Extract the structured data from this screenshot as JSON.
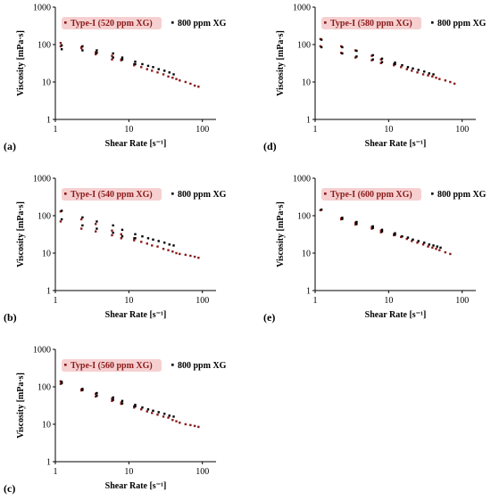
{
  "colors": {
    "type1": "#8b1a1a",
    "xg800": "#000000",
    "legend_highlight": "#f6d0d0"
  },
  "chart_data": [
    {
      "type": "scatter",
      "panel_label": "(a)",
      "xlabel": "Shear Rate [s⁻¹]",
      "ylabel": "Viscosity [mPa·s]",
      "xscale": "log",
      "yscale": "log",
      "xlim": [
        1,
        100
      ],
      "ylim": [
        1,
        1000
      ],
      "x_ticks": [
        "1",
        "10",
        "100"
      ],
      "y_ticks": [
        "1",
        "10",
        "100",
        "1000"
      ],
      "legend_position": "top",
      "series": [
        {
          "name": "Type-I (520 ppm XG)",
          "x": [
            1.2,
            1.2,
            2.3,
            2.3,
            3.6,
            3.6,
            6,
            6,
            8,
            8,
            12,
            12,
            15,
            18,
            21,
            25,
            30,
            35,
            40,
            45,
            50,
            60,
            70,
            80,
            90
          ],
          "y": [
            90,
            110,
            80,
            85,
            62,
            55,
            50,
            40,
            40,
            38,
            30,
            28,
            25,
            22,
            20,
            18,
            16,
            14,
            13,
            12,
            11,
            10,
            9,
            8,
            7.5
          ]
        },
        {
          "name": "800 ppm XG",
          "x": [
            1.2,
            1.2,
            2.3,
            2.3,
            3.6,
            3.6,
            6,
            6,
            8,
            8,
            12,
            12,
            15,
            18,
            21,
            25,
            30,
            35,
            40
          ],
          "y": [
            95,
            75,
            90,
            70,
            70,
            60,
            58,
            45,
            45,
            40,
            35,
            30,
            30,
            27,
            25,
            22,
            20,
            18,
            16
          ]
        }
      ]
    },
    {
      "type": "scatter",
      "panel_label": "(b)",
      "xlabel": "Shear Rate [s⁻¹]",
      "ylabel": "Viscosity [mPa·s]",
      "xscale": "log",
      "yscale": "log",
      "xlim": [
        1,
        100
      ],
      "ylim": [
        1,
        1000
      ],
      "x_ticks": [
        "1",
        "10",
        "100"
      ],
      "y_ticks": [
        "1",
        "10",
        "100",
        "1000"
      ],
      "legend_position": "top",
      "series": [
        {
          "name": "Type-I (540 ppm XG)",
          "x": [
            1.2,
            1.2,
            2.3,
            2.3,
            3.6,
            3.6,
            6,
            6,
            8,
            8,
            12,
            12,
            15,
            18,
            21,
            25,
            30,
            35,
            40,
            45,
            50,
            60,
            70,
            80,
            90
          ],
          "y": [
            130,
            70,
            80,
            45,
            60,
            38,
            40,
            30,
            32,
            25,
            25,
            22,
            20,
            18,
            16,
            15,
            13,
            12,
            11,
            10,
            9.5,
            9,
            8.5,
            8,
            7.5
          ]
        },
        {
          "name": "800 ppm XG",
          "x": [
            1.2,
            1.2,
            2.3,
            2.3,
            3.6,
            3.6,
            6,
            6,
            8,
            8,
            12,
            12,
            15,
            18,
            21,
            25,
            30,
            35,
            40
          ],
          "y": [
            135,
            80,
            90,
            55,
            70,
            45,
            55,
            35,
            42,
            28,
            32,
            25,
            28,
            25,
            23,
            21,
            19,
            17,
            16
          ]
        }
      ]
    },
    {
      "type": "scatter",
      "panel_label": "(c)",
      "xlabel": "Shear Rate [s⁻¹]",
      "ylabel": "Viscosity [mPa·s]",
      "xscale": "log",
      "yscale": "log",
      "xlim": [
        1,
        100
      ],
      "ylim": [
        1,
        1000
      ],
      "x_ticks": [
        "1",
        "10",
        "100"
      ],
      "y_ticks": [
        "1",
        "10",
        "100",
        "1000"
      ],
      "legend_position": "top",
      "series": [
        {
          "name": "Type-I (560 ppm XG)",
          "x": [
            1.2,
            1.2,
            2.3,
            2.3,
            3.6,
            3.6,
            6,
            6,
            8,
            8,
            12,
            12,
            15,
            18,
            21,
            25,
            30,
            35,
            40,
            45,
            50,
            60,
            70,
            80,
            90
          ],
          "y": [
            140,
            120,
            85,
            80,
            65,
            55,
            48,
            42,
            38,
            35,
            30,
            28,
            25,
            22,
            20,
            18,
            16,
            15,
            13,
            12,
            11,
            10,
            9.5,
            9,
            8.5
          ]
        },
        {
          "name": "800 ppm XG",
          "x": [
            1.2,
            1.2,
            2.3,
            2.3,
            3.6,
            3.6,
            6,
            6,
            8,
            8,
            12,
            12,
            15,
            18,
            21,
            25,
            30,
            35,
            40
          ],
          "y": [
            135,
            125,
            88,
            82,
            68,
            58,
            52,
            45,
            42,
            36,
            33,
            30,
            28,
            25,
            23,
            21,
            19,
            17,
            16
          ]
        }
      ]
    },
    {
      "type": "scatter",
      "panel_label": "(d)",
      "xlabel": "Shear Rate [s⁻¹]",
      "ylabel": "Viscosity [mPa·s]",
      "xscale": "log",
      "yscale": "log",
      "xlim": [
        1,
        100
      ],
      "ylim": [
        1,
        1000
      ],
      "x_ticks": [
        "1",
        "10",
        "100"
      ],
      "y_ticks": [
        "1",
        "10",
        "100",
        "1000"
      ],
      "legend_position": "top",
      "series": [
        {
          "name": "Type-I (580 ppm XG)",
          "x": [
            1.2,
            1.2,
            2.3,
            2.3,
            3.6,
            3.6,
            6,
            6,
            8,
            8,
            12,
            12,
            15,
            18,
            21,
            25,
            30,
            35,
            40,
            45,
            50,
            60,
            70,
            80
          ],
          "y": [
            140,
            90,
            90,
            60,
            70,
            45,
            50,
            38,
            40,
            32,
            30,
            28,
            25,
            22,
            20,
            18,
            16,
            15,
            14,
            13,
            12,
            11,
            10,
            9
          ]
        },
        {
          "name": "800 ppm XG",
          "x": [
            1.2,
            1.2,
            2.3,
            2.3,
            3.6,
            3.6,
            6,
            6,
            8,
            8,
            12,
            12,
            15,
            18,
            21,
            25,
            30,
            35,
            40
          ],
          "y": [
            135,
            85,
            85,
            58,
            68,
            48,
            52,
            40,
            42,
            34,
            33,
            30,
            28,
            25,
            23,
            21,
            19,
            17,
            16
          ]
        }
      ]
    },
    {
      "type": "scatter",
      "panel_label": "(e)",
      "xlabel": "Shear Rate [s⁻¹]",
      "ylabel": "Viscosity [mPa·s]",
      "xscale": "log",
      "yscale": "log",
      "xlim": [
        1,
        100
      ],
      "ylim": [
        1,
        1000
      ],
      "x_ticks": [
        "1",
        "10",
        "100"
      ],
      "y_ticks": [
        "1",
        "10",
        "100",
        "1000"
      ],
      "legend_position": "top",
      "series": [
        {
          "name": "Type-I (600 ppm XG)",
          "x": [
            1.2,
            2.3,
            2.3,
            3.6,
            3.6,
            6,
            6,
            8,
            8,
            12,
            12,
            15,
            18,
            21,
            25,
            30,
            35,
            40,
            45,
            50,
            60,
            70
          ],
          "y": [
            140,
            85,
            80,
            65,
            58,
            50,
            45,
            40,
            36,
            32,
            30,
            27,
            24,
            21,
            19,
            17,
            15,
            14,
            13,
            12,
            10.5,
            9.5
          ]
        },
        {
          "name": "800 ppm XG",
          "x": [
            1.2,
            2.3,
            2.3,
            3.6,
            3.6,
            6,
            6,
            8,
            8,
            12,
            12,
            15,
            18,
            21,
            25,
            30,
            35,
            40,
            45,
            50
          ],
          "y": [
            145,
            88,
            82,
            68,
            60,
            52,
            47,
            42,
            38,
            34,
            31,
            28,
            26,
            23,
            21,
            19,
            17,
            16,
            15,
            14
          ]
        }
      ]
    }
  ]
}
